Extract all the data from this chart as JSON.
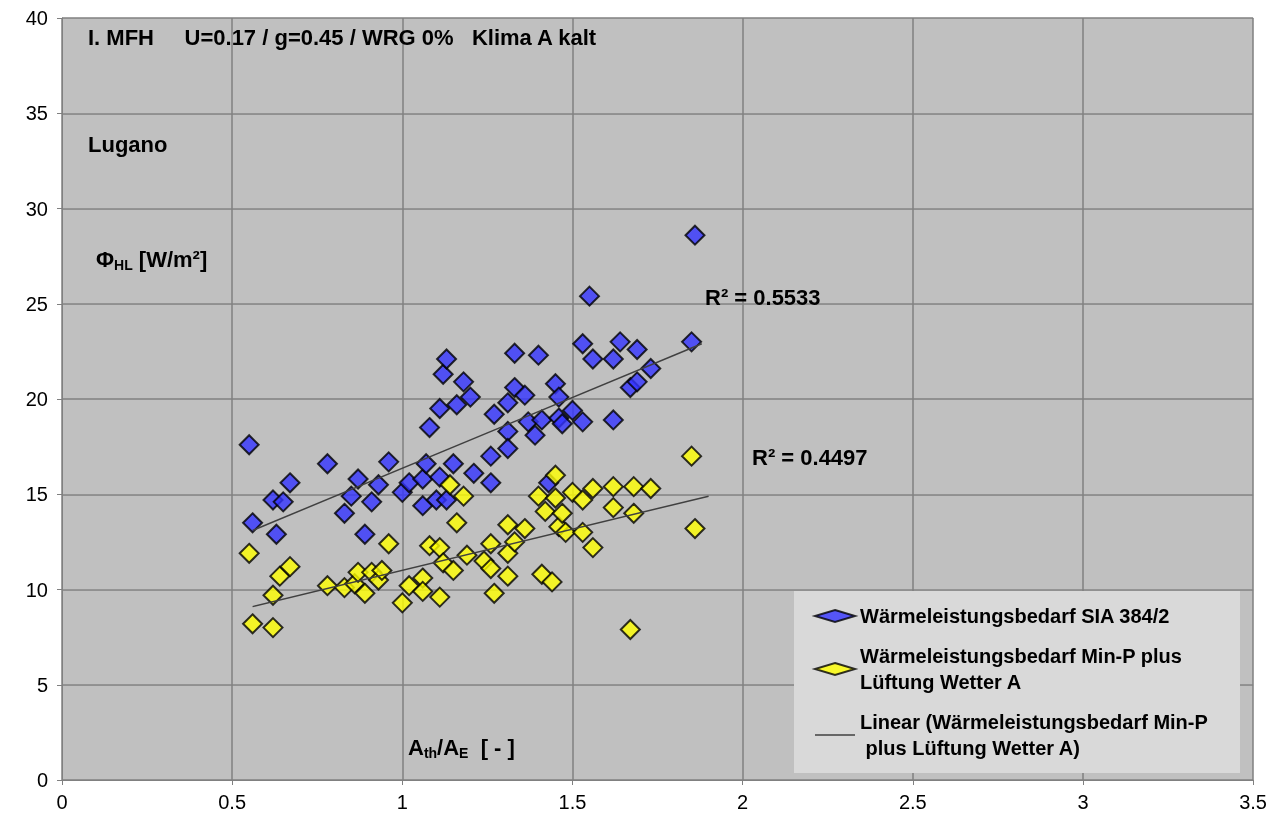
{
  "chart_data": {
    "type": "scatter",
    "xlabel": "A$_{th}$/A$_{E}$  [ - ]",
    "ylabel": "Φ$_{HL}$ [W/m²]",
    "annotations": [
      "I. MFH     U=0.17 / g=0.45 / WRG 0%   Klima A kalt",
      "Lugano",
      "R² = 0.5533",
      "R² = 0.4497"
    ],
    "xlim": [
      0,
      3.5
    ],
    "xticks": [
      0,
      0.5,
      1,
      1.5,
      2,
      2.5,
      3,
      3.5
    ],
    "ylim": [
      0,
      40
    ],
    "yticks": [
      0,
      5,
      10,
      15,
      20,
      25,
      30,
      35,
      40
    ],
    "grid": true,
    "legend": "bottom right",
    "series": [
      {
        "name": "Wärmeleistungsbedarf SIA 384/2",
        "color": "#3333ff",
        "marker": "diamond",
        "x": [
          0.55,
          0.56,
          0.62,
          0.63,
          0.65,
          0.67,
          0.78,
          0.83,
          0.85,
          0.87,
          0.89,
          0.91,
          0.93,
          0.96,
          1.0,
          1.02,
          1.06,
          1.06,
          1.07,
          1.08,
          1.1,
          1.11,
          1.11,
          1.12,
          1.13,
          1.13,
          1.15,
          1.16,
          1.18,
          1.2,
          1.21,
          1.26,
          1.26,
          1.27,
          1.31,
          1.31,
          1.31,
          1.33,
          1.33,
          1.36,
          1.37,
          1.39,
          1.4,
          1.41,
          1.43,
          1.45,
          1.46,
          1.46,
          1.47,
          1.5,
          1.53,
          1.53,
          1.55,
          1.56,
          1.62,
          1.62,
          1.64,
          1.67,
          1.69,
          1.69,
          1.73,
          1.85,
          1.86
        ],
        "values": [
          17.6,
          13.5,
          14.7,
          12.9,
          14.6,
          15.6,
          16.6,
          14.0,
          14.9,
          15.8,
          12.9,
          14.6,
          15.5,
          16.7,
          15.1,
          15.6,
          15.8,
          14.4,
          16.6,
          18.5,
          14.7,
          15.9,
          19.5,
          21.3,
          22.1,
          14.7,
          16.6,
          19.7,
          20.9,
          20.1,
          16.1,
          17.0,
          15.6,
          19.2,
          18.3,
          17.4,
          19.8,
          22.4,
          20.6,
          20.2,
          18.8,
          18.1,
          22.3,
          18.9,
          15.6,
          20.8,
          20.1,
          19.0,
          18.7,
          19.4,
          22.9,
          18.8,
          25.4,
          22.1,
          22.1,
          18.9,
          23.0,
          20.6,
          20.9,
          22.6,
          21.6,
          23.0,
          28.6
        ]
      },
      {
        "name": "Wärmeleistungsbedarf Min-P plus Lüftung Wetter A",
        "color": "#ffff00",
        "marker": "diamond",
        "x": [
          0.55,
          0.56,
          0.62,
          0.62,
          0.64,
          0.67,
          0.78,
          0.83,
          0.86,
          0.87,
          0.89,
          0.91,
          0.93,
          0.94,
          0.96,
          1.0,
          1.02,
          1.06,
          1.06,
          1.08,
          1.11,
          1.11,
          1.12,
          1.14,
          1.15,
          1.16,
          1.18,
          1.19,
          1.24,
          1.26,
          1.26,
          1.27,
          1.31,
          1.31,
          1.31,
          1.33,
          1.36,
          1.4,
          1.41,
          1.42,
          1.44,
          1.45,
          1.45,
          1.46,
          1.47,
          1.48,
          1.5,
          1.53,
          1.53,
          1.56,
          1.56,
          1.62,
          1.62,
          1.67,
          1.68,
          1.68,
          1.73,
          1.85,
          1.86
        ],
        "values": [
          11.9,
          8.2,
          9.7,
          8.0,
          10.7,
          11.2,
          10.2,
          10.1,
          10.3,
          10.9,
          9.8,
          10.9,
          10.5,
          11.0,
          12.4,
          9.3,
          10.2,
          10.6,
          9.9,
          12.3,
          12.2,
          9.6,
          11.4,
          15.5,
          11.0,
          13.5,
          14.9,
          11.8,
          11.5,
          12.4,
          11.1,
          9.8,
          13.4,
          11.9,
          10.7,
          12.5,
          13.2,
          14.9,
          10.8,
          14.1,
          10.4,
          16.0,
          14.8,
          13.3,
          14.0,
          13.0,
          15.1,
          14.7,
          13.0,
          15.3,
          12.2,
          15.4,
          14.3,
          7.9,
          15.4,
          14.0,
          15.3,
          17.0,
          13.2
        ]
      },
      {
        "type": "line",
        "color": "#404040",
        "x": [
          0.56,
          1.88
        ],
        "values": [
          13.1,
          22.9
        ]
      },
      {
        "type": "line",
        "name": "Linear (Wärmeleistungsbedarf Min-P plus Lüftung Wetter A)",
        "color": "#404040",
        "x": [
          0.56,
          1.9
        ],
        "values": [
          9.1,
          14.9
        ]
      }
    ]
  }
}
